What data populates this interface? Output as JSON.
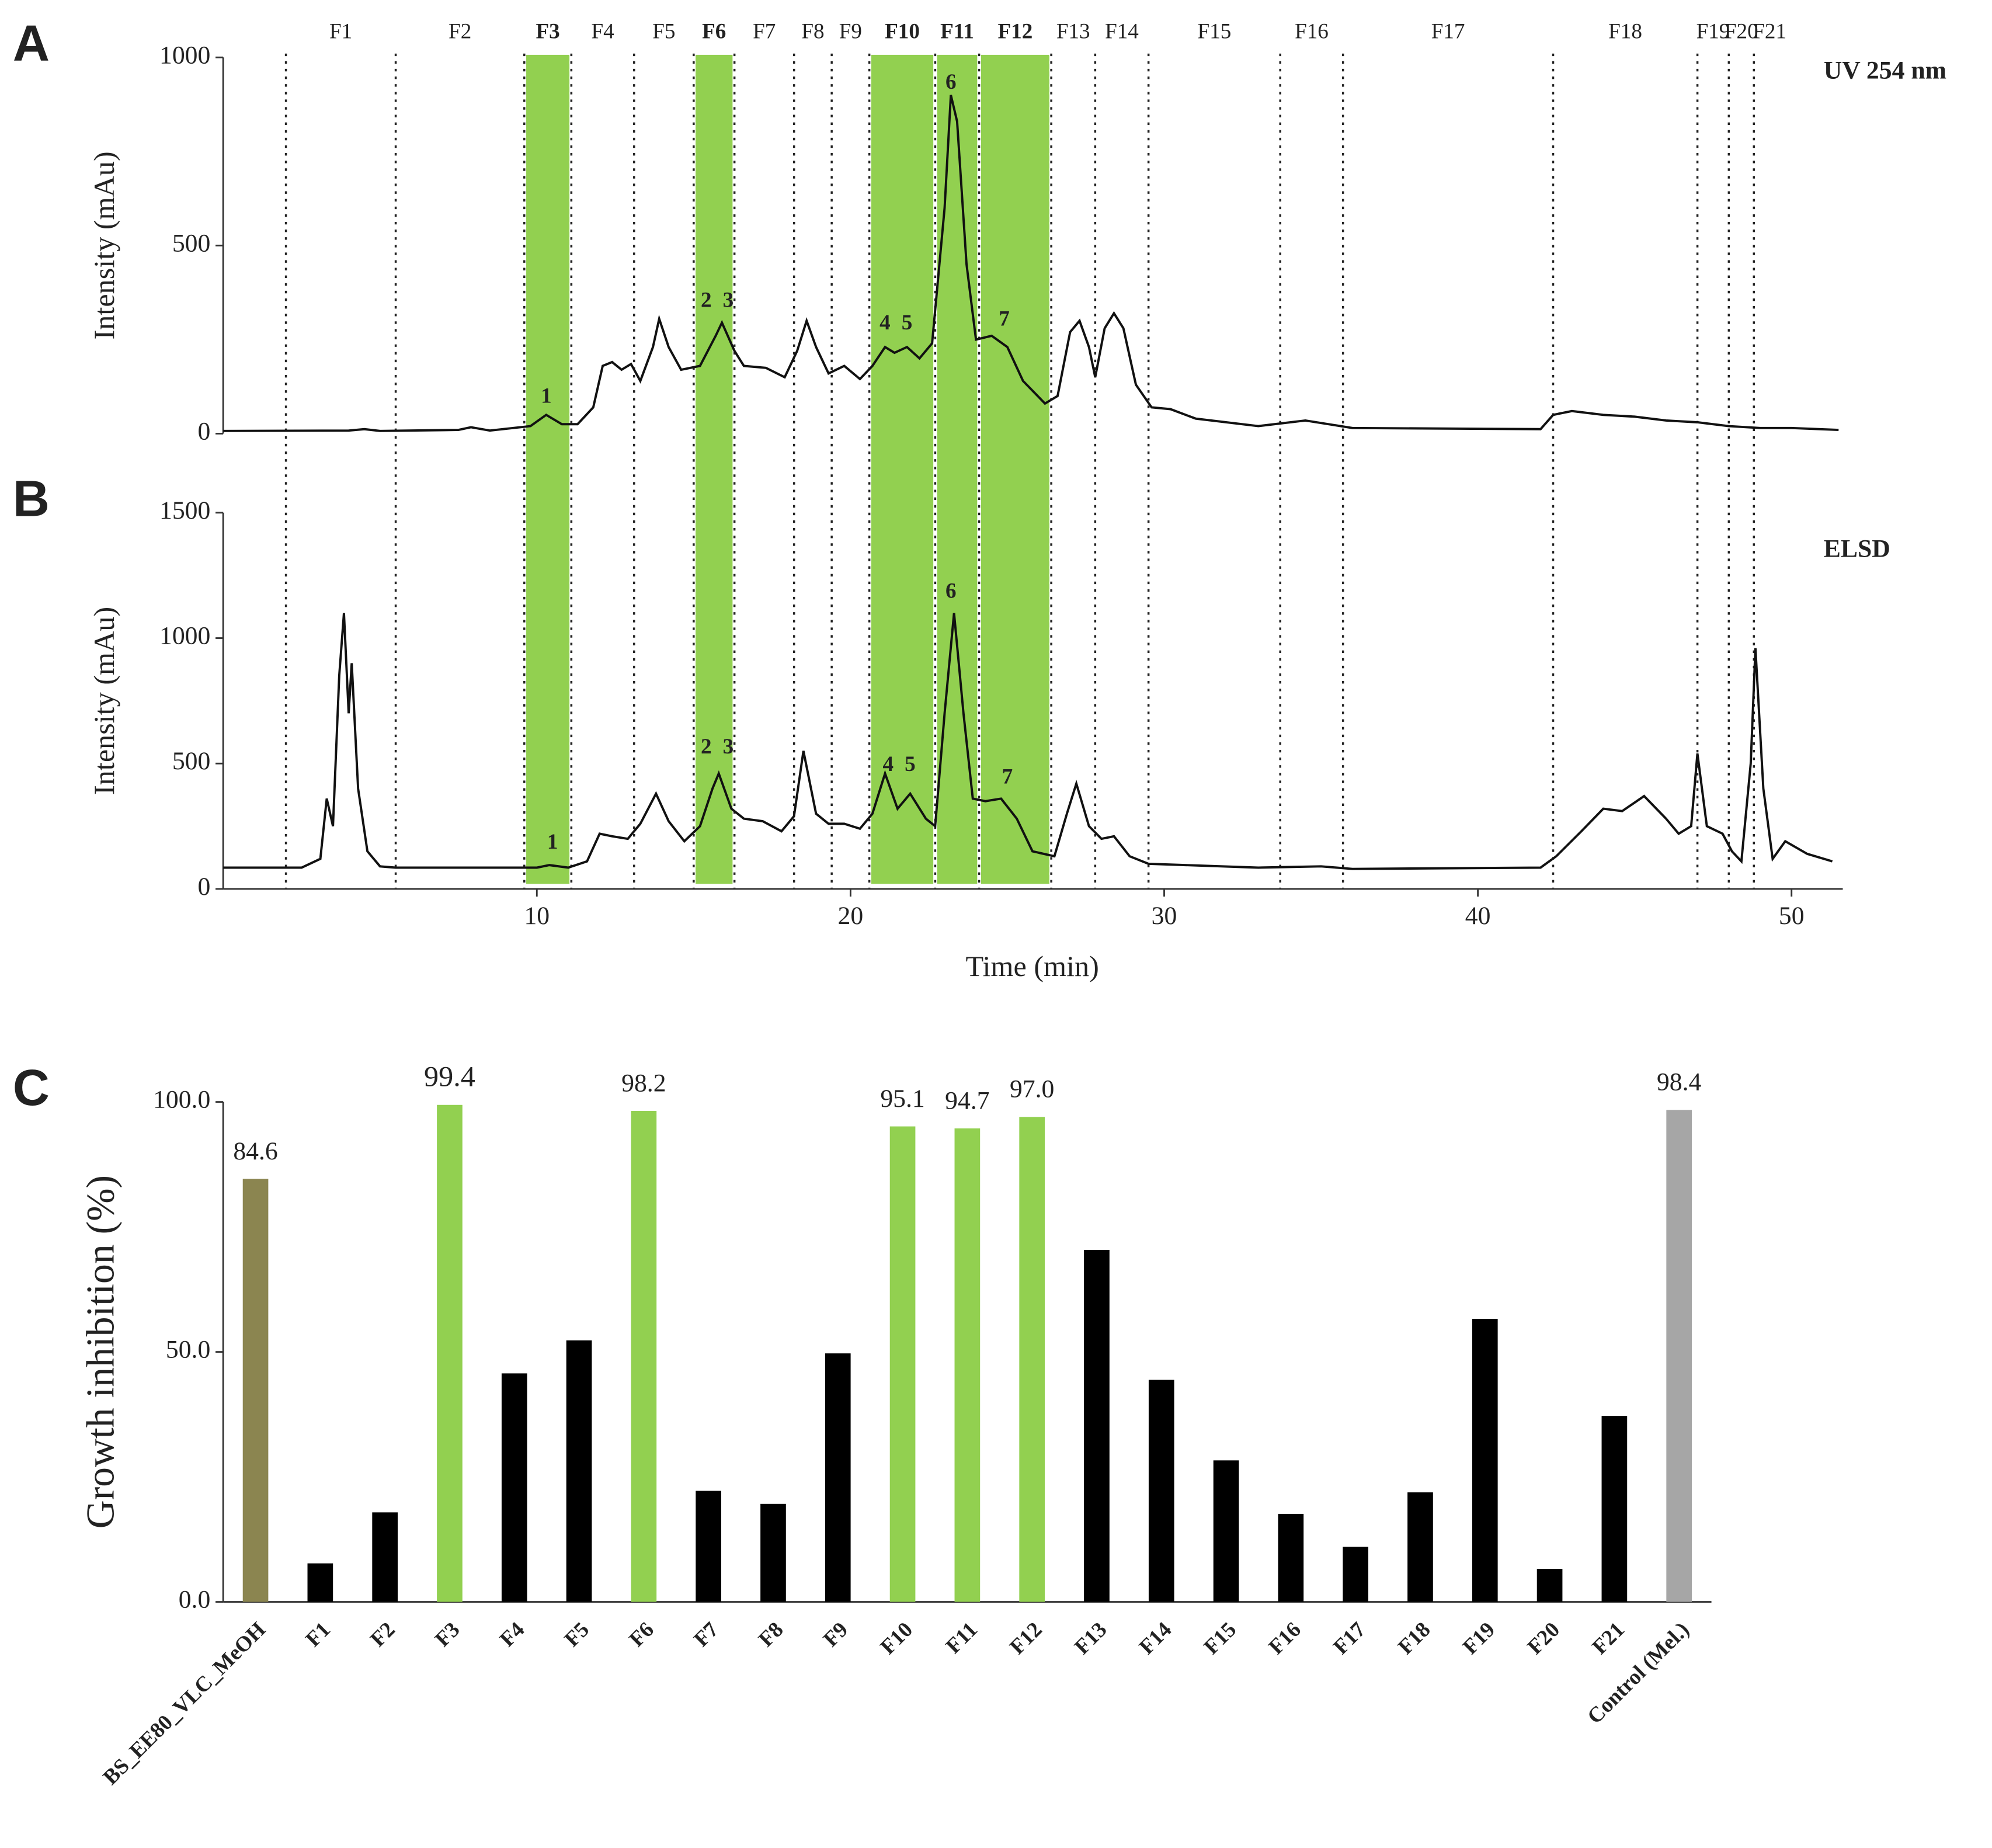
{
  "chart_data": [
    {
      "type": "line",
      "panel": "A",
      "ylabel": "Intensity (mAu)",
      "annotation": "UV 254 nm",
      "color": "#111111",
      "xlim": [
        0,
        52
      ],
      "ylim": [
        0,
        1000
      ],
      "yticks": [
        0,
        500,
        1000
      ],
      "x": [
        0,
        4,
        4.5,
        5,
        7.5,
        7.9,
        8.5,
        9.8,
        10.3,
        10.8,
        11.3,
        11.8,
        12.1,
        12.4,
        12.7,
        13.0,
        13.3,
        13.7,
        13.9,
        14.2,
        14.6,
        15.2,
        15.7,
        15.9,
        16.3,
        16.6,
        17.3,
        17.9,
        18.3,
        18.6,
        18.9,
        19.3,
        19.8,
        20.3,
        20.7,
        21.1,
        21.4,
        21.8,
        22.2,
        22.6,
        23.0,
        23.2,
        23.4,
        23.7,
        24.0,
        24.5,
        25.0,
        25.5,
        26.2,
        26.6,
        27.0,
        27.3,
        27.6,
        27.8,
        28.1,
        28.4,
        28.7,
        29.1,
        29.6,
        30.2,
        31.0,
        33,
        34.5,
        36,
        42,
        42.4,
        43,
        44,
        45,
        46,
        47,
        48,
        49,
        50,
        51.5
      ],
      "values": [
        7,
        8,
        12,
        7,
        10,
        17,
        8,
        20,
        50,
        25,
        25,
        70,
        180,
        190,
        170,
        185,
        140,
        230,
        305,
        230,
        170,
        180,
        260,
        295,
        220,
        180,
        175,
        150,
        220,
        300,
        230,
        160,
        180,
        145,
        180,
        230,
        215,
        230,
        200,
        240,
        600,
        900,
        830,
        450,
        250,
        260,
        230,
        140,
        80,
        100,
        270,
        300,
        230,
        150,
        280,
        320,
        280,
        130,
        70,
        65,
        40,
        20,
        35,
        15,
        12,
        50,
        60,
        50,
        45,
        35,
        30,
        20,
        15,
        15,
        10
      ],
      "fractions": [
        {
          "label": "F1",
          "start": 2.0,
          "end": 5.5,
          "highlight": false
        },
        {
          "label": "F2",
          "start": 5.5,
          "end": 9.6,
          "highlight": false
        },
        {
          "label": "F3",
          "start": 9.6,
          "end": 11.1,
          "highlight": true
        },
        {
          "label": "F4",
          "start": 11.1,
          "end": 13.1,
          "highlight": false
        },
        {
          "label": "F5",
          "start": 13.1,
          "end": 15.0,
          "highlight": false
        },
        {
          "label": "F6",
          "start": 15.0,
          "end": 16.3,
          "highlight": true
        },
        {
          "label": "F7",
          "start": 16.3,
          "end": 18.2,
          "highlight": false
        },
        {
          "label": "F8",
          "start": 18.2,
          "end": 19.4,
          "highlight": false
        },
        {
          "label": "F9",
          "start": 19.4,
          "end": 20.6,
          "highlight": false
        },
        {
          "label": "F10",
          "start": 20.6,
          "end": 22.7,
          "highlight": true
        },
        {
          "label": "F11",
          "start": 22.7,
          "end": 24.1,
          "highlight": true
        },
        {
          "label": "F12",
          "start": 24.1,
          "end": 26.4,
          "highlight": true
        },
        {
          "label": "F13",
          "start": 26.4,
          "end": 27.8,
          "highlight": false
        },
        {
          "label": "F14",
          "start": 27.8,
          "end": 29.5,
          "highlight": false
        },
        {
          "label": "F15",
          "start": 29.5,
          "end": 33.7,
          "highlight": false
        },
        {
          "label": "F16",
          "start": 33.7,
          "end": 35.7,
          "highlight": false
        },
        {
          "label": "F17",
          "start": 35.7,
          "end": 42.4,
          "highlight": false
        },
        {
          "label": "F18",
          "start": 42.4,
          "end": 47.0,
          "highlight": false
        },
        {
          "label": "F19",
          "start": 47.0,
          "end": 48.0,
          "highlight": false
        },
        {
          "label": "F20",
          "start": 48.0,
          "end": 48.8,
          "highlight": false
        },
        {
          "label": "F21",
          "start": 48.8,
          "end": 49.8,
          "highlight": false
        }
      ],
      "highlight_color": "#92d050",
      "peaks": [
        {
          "label": "1",
          "x": 10.3,
          "y": 95
        },
        {
          "label": "2",
          "x": 15.4,
          "y": 350
        },
        {
          "label": "3",
          "x": 16.1,
          "y": 350
        },
        {
          "label": "4",
          "x": 21.1,
          "y": 290
        },
        {
          "label": "5",
          "x": 21.8,
          "y": 290
        },
        {
          "label": "6",
          "x": 23.2,
          "y": 930
        },
        {
          "label": "7",
          "x": 24.9,
          "y": 300
        }
      ]
    },
    {
      "type": "line",
      "panel": "B",
      "ylabel": "Intensity (mAu)",
      "xlabel": "Time (min)",
      "annotation": "ELSD",
      "color": "#111111",
      "xlim": [
        0,
        52
      ],
      "xticks": [
        10,
        20,
        30,
        40,
        50
      ],
      "ylim": [
        0,
        1500
      ],
      "yticks": [
        0,
        500,
        1000,
        1500
      ],
      "x": [
        0,
        2.5,
        3.1,
        3.3,
        3.5,
        3.7,
        3.85,
        4.0,
        4.1,
        4.3,
        4.6,
        5.0,
        5.5,
        10,
        10.4,
        11.0,
        11.6,
        12.0,
        12.4,
        12.9,
        13.3,
        13.8,
        14.2,
        14.7,
        15.2,
        15.6,
        15.8,
        16.2,
        16.6,
        17.2,
        17.8,
        18.2,
        18.5,
        18.9,
        19.3,
        19.8,
        20.3,
        20.7,
        21.1,
        21.5,
        21.9,
        22.4,
        22.7,
        23.0,
        23.3,
        23.6,
        23.9,
        24.3,
        24.8,
        25.3,
        25.8,
        26.5,
        26.9,
        27.2,
        27.6,
        28.0,
        28.4,
        28.9,
        29.5,
        33,
        35,
        36,
        42,
        42.5,
        43.3,
        44,
        44.6,
        45.3,
        46.0,
        46.4,
        46.8,
        47.0,
        47.3,
        47.8,
        48.1,
        48.4,
        48.7,
        48.85,
        49.1,
        49.4,
        49.8,
        50.5,
        51.3
      ],
      "values": [
        85,
        85,
        120,
        360,
        250,
        850,
        1100,
        700,
        900,
        400,
        150,
        90,
        85,
        85,
        95,
        85,
        110,
        220,
        210,
        200,
        260,
        380,
        270,
        190,
        250,
        400,
        460,
        320,
        280,
        270,
        230,
        290,
        550,
        300,
        260,
        260,
        240,
        300,
        460,
        320,
        380,
        280,
        250,
        700,
        1100,
        700,
        360,
        350,
        360,
        280,
        150,
        130,
        300,
        420,
        250,
        200,
        210,
        130,
        100,
        85,
        90,
        80,
        85,
        130,
        230,
        320,
        310,
        370,
        280,
        220,
        250,
        540,
        250,
        220,
        150,
        110,
        500,
        960,
        400,
        120,
        190,
        140,
        110
      ],
      "peaks": [
        {
          "label": "1",
          "x": 10.5,
          "y": 180
        },
        {
          "label": "2",
          "x": 15.4,
          "y": 560
        },
        {
          "label": "3",
          "x": 16.1,
          "y": 560
        },
        {
          "label": "4",
          "x": 21.2,
          "y": 490
        },
        {
          "label": "5",
          "x": 21.9,
          "y": 490
        },
        {
          "label": "6",
          "x": 23.2,
          "y": 1180
        },
        {
          "label": "7",
          "x": 25.0,
          "y": 440
        }
      ]
    },
    {
      "type": "bar",
      "panel": "C",
      "ylabel": "Growth inhibition (%)",
      "categories": [
        "BS_EE80_VLC_MeOH",
        "F1",
        "F2",
        "F3",
        "F4",
        "F5",
        "F6",
        "F7",
        "F8",
        "F9",
        "F10",
        "F11",
        "F12",
        "F13",
        "F14",
        "F15",
        "F16",
        "F17",
        "F18",
        "F19",
        "F20",
        "F21",
        "Control (Mel.)"
      ],
      "values": [
        84.6,
        7.7,
        17.9,
        99.4,
        45.7,
        52.3,
        98.2,
        22.2,
        19.6,
        49.7,
        95.1,
        94.7,
        97.0,
        70.4,
        44.4,
        28.3,
        17.6,
        11.0,
        21.9,
        56.6,
        6.6,
        37.2,
        98.4
      ],
      "value_labels": [
        "84.6",
        null,
        null,
        "99.4",
        null,
        null,
        "98.2",
        null,
        null,
        null,
        "95.1",
        "94.7",
        "97.0",
        null,
        null,
        null,
        null,
        null,
        null,
        null,
        null,
        null,
        "98.4"
      ],
      "colors": [
        "#8b8550",
        "#000000",
        "#000000",
        "#92d050",
        "#000000",
        "#000000",
        "#92d050",
        "#000000",
        "#000000",
        "#000000",
        "#92d050",
        "#92d050",
        "#92d050",
        "#000000",
        "#000000",
        "#000000",
        "#000000",
        "#000000",
        "#000000",
        "#000000",
        "#000000",
        "#000000",
        "#a6a6a6"
      ],
      "ylim": [
        0,
        100
      ],
      "yticks": [
        {
          "value": 0,
          "label": "0.0"
        },
        {
          "value": 50,
          "label": "50.0"
        },
        {
          "value": 100,
          "label": "100.0"
        }
      ]
    }
  ]
}
